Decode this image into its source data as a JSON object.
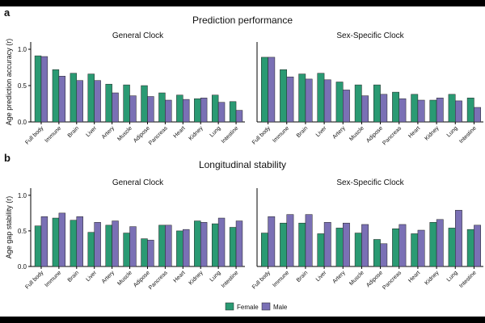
{
  "colors": {
    "female": "#2a9a73",
    "male": "#7a70b5",
    "axis": "#000000"
  },
  "chart_data": [
    {
      "type": "bar",
      "panel_label": "a",
      "section_title": "Prediction performance",
      "title": "General Clock",
      "ylabel": "Age prediction accuracy (r)",
      "ylim": [
        0,
        1.1
      ],
      "yticks": [
        "0.0",
        "0.5",
        "1.0"
      ],
      "categories": [
        "Full body",
        "Immune",
        "Brain",
        "Liver",
        "Artery",
        "Muscle",
        "Adipose",
        "Pancreas",
        "Heart",
        "Kidney",
        "Lung",
        "Intestine"
      ],
      "series": [
        {
          "name": "Female",
          "values": [
            0.91,
            0.72,
            0.67,
            0.66,
            0.52,
            0.51,
            0.5,
            0.4,
            0.37,
            0.32,
            0.37,
            0.28
          ]
        },
        {
          "name": "Male",
          "values": [
            0.9,
            0.63,
            0.57,
            0.57,
            0.4,
            0.36,
            0.35,
            0.3,
            0.31,
            0.33,
            0.27,
            0.16
          ]
        }
      ]
    },
    {
      "type": "bar",
      "title": "Sex-Specific Clock",
      "ylim": [
        0,
        1.1
      ],
      "categories": [
        "Full body",
        "Immune",
        "Brain",
        "Liver",
        "Artery",
        "Muscle",
        "Adipose",
        "Pancreas",
        "Heart",
        "Kidney",
        "Lung",
        "Intestine"
      ],
      "series": [
        {
          "name": "Female",
          "values": [
            0.89,
            0.72,
            0.66,
            0.67,
            0.55,
            0.51,
            0.51,
            0.41,
            0.38,
            0.3,
            0.38,
            0.33
          ]
        },
        {
          "name": "Male",
          "values": [
            0.89,
            0.62,
            0.59,
            0.58,
            0.44,
            0.36,
            0.38,
            0.32,
            0.3,
            0.33,
            0.29,
            0.2
          ]
        }
      ]
    },
    {
      "type": "bar",
      "panel_label": "b",
      "section_title": "Longitudinal stability",
      "title": "General Clock",
      "ylabel": "Age gap stability (r)",
      "ylim": [
        0,
        1.1
      ],
      "yticks": [
        "0.0",
        "0.5",
        "1.0"
      ],
      "categories": [
        "Full body",
        "Immune",
        "Brain",
        "Liver",
        "Artery",
        "Muscle",
        "Adipose",
        "Pancreas",
        "Heart",
        "Kidney",
        "Lung",
        "Intestine"
      ],
      "series": [
        {
          "name": "Female",
          "values": [
            0.57,
            0.68,
            0.65,
            0.48,
            0.58,
            0.47,
            0.39,
            0.58,
            0.5,
            0.64,
            0.6,
            0.55
          ]
        },
        {
          "name": "Male",
          "values": [
            0.7,
            0.75,
            0.7,
            0.62,
            0.64,
            0.56,
            0.37,
            0.58,
            0.52,
            0.62,
            0.68,
            0.64
          ]
        }
      ]
    },
    {
      "type": "bar",
      "title": "Sex-Specific Clock",
      "ylim": [
        0,
        1.1
      ],
      "categories": [
        "Full body",
        "Immune",
        "Brain",
        "Liver",
        "Artery",
        "Muscle",
        "Adipose",
        "Pancreas",
        "Heart",
        "Kidney",
        "Lung",
        "Intestine"
      ],
      "series": [
        {
          "name": "Female",
          "values": [
            0.47,
            0.61,
            0.61,
            0.46,
            0.54,
            0.47,
            0.38,
            0.53,
            0.46,
            0.62,
            0.54,
            0.52
          ]
        },
        {
          "name": "Male",
          "values": [
            0.7,
            0.73,
            0.73,
            0.62,
            0.61,
            0.59,
            0.32,
            0.59,
            0.51,
            0.66,
            0.79,
            0.58
          ]
        }
      ]
    }
  ],
  "legend": {
    "position": "bottom-center",
    "items": [
      "Female",
      "Male"
    ]
  }
}
